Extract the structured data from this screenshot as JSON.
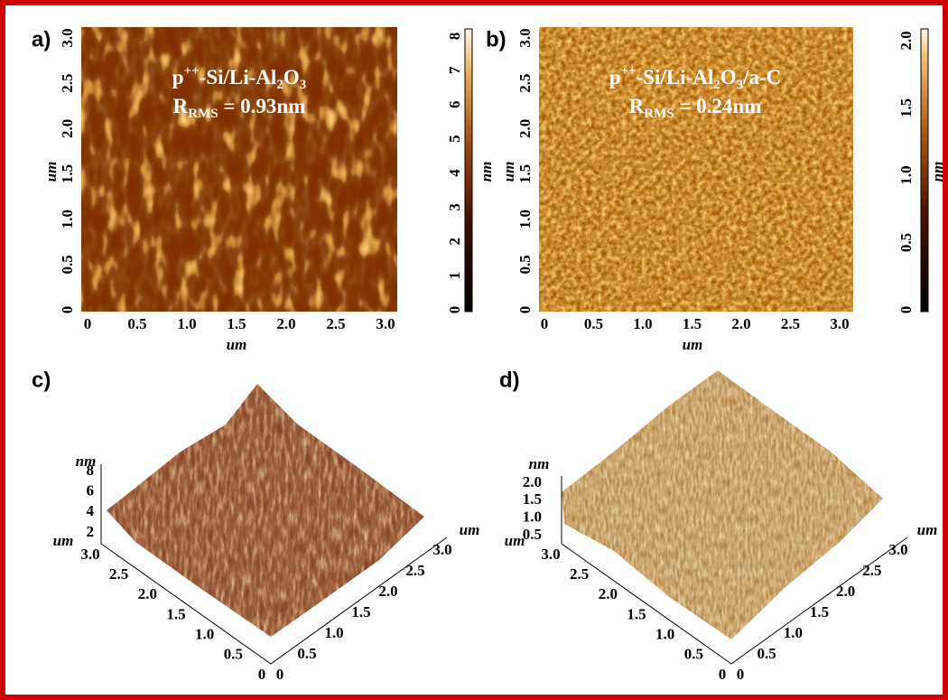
{
  "panels": [
    {
      "label": "a)",
      "title": {
        "line1": [
          "p",
          "++",
          "-Si/Li-Al",
          "2",
          "O",
          "3"
        ],
        "line2": [
          "R",
          "RMS",
          " = 0.93nm"
        ]
      },
      "x_ticks": [
        "0",
        "0.5",
        "1.0",
        "1.5",
        "2.0",
        "2.5",
        "3.0"
      ],
      "y_ticks": [
        "0",
        "0.5",
        "1.0",
        "1.5",
        "2.0",
        "2.5",
        "3.0"
      ],
      "x_label": "um",
      "y_label": "um",
      "colorbar": {
        "ticks": [
          "0",
          "1",
          "2",
          "3",
          "4",
          "5",
          "6",
          "7",
          "8"
        ],
        "label": "nm"
      }
    },
    {
      "label": "b)",
      "title": {
        "line1": [
          "p",
          "++",
          "-Si/Li-Al",
          "2",
          "O",
          "3",
          "/a-C"
        ],
        "line2": [
          "R",
          "RMS",
          " = 0.24nm"
        ]
      },
      "x_ticks": [
        "0",
        "0.5",
        "1.0",
        "1.5",
        "2.0",
        "2.5",
        "3.0"
      ],
      "y_ticks": [
        "0",
        "0.5",
        "1.0",
        "1.5",
        "2.0",
        "2.5",
        "3.0"
      ],
      "x_label": "um",
      "y_label": "um",
      "colorbar": {
        "ticks": [
          "0",
          "0.5",
          "1.0",
          "1.5",
          "2.0"
        ],
        "label": "nm"
      }
    },
    {
      "label": "c)",
      "z_label": "nm",
      "z_ticks": [
        "2",
        "4",
        "6",
        "8"
      ],
      "left_axis": {
        "label": "um",
        "ticks": [
          "3.0",
          "2.5",
          "2.0",
          "1.5",
          "1.0",
          "0.5",
          "0"
        ]
      },
      "right_axis": {
        "label": "um",
        "ticks": [
          "0",
          "0.5",
          "1.0",
          "1.5",
          "2.0",
          "2.5",
          "3.0"
        ]
      }
    },
    {
      "label": "d)",
      "z_label": "nm",
      "z_ticks": [
        "0.5",
        "1.0",
        "1.5",
        "2.0"
      ],
      "left_axis": {
        "label": "um",
        "ticks": [
          "3.0",
          "2.5",
          "2.0",
          "1.5",
          "1.0",
          "0.5",
          "0"
        ]
      },
      "right_axis": {
        "label": "um",
        "ticks": [
          "0",
          "0.5",
          "1.0",
          "1.5",
          "2.0",
          "2.5",
          "3.0"
        ]
      }
    }
  ]
}
